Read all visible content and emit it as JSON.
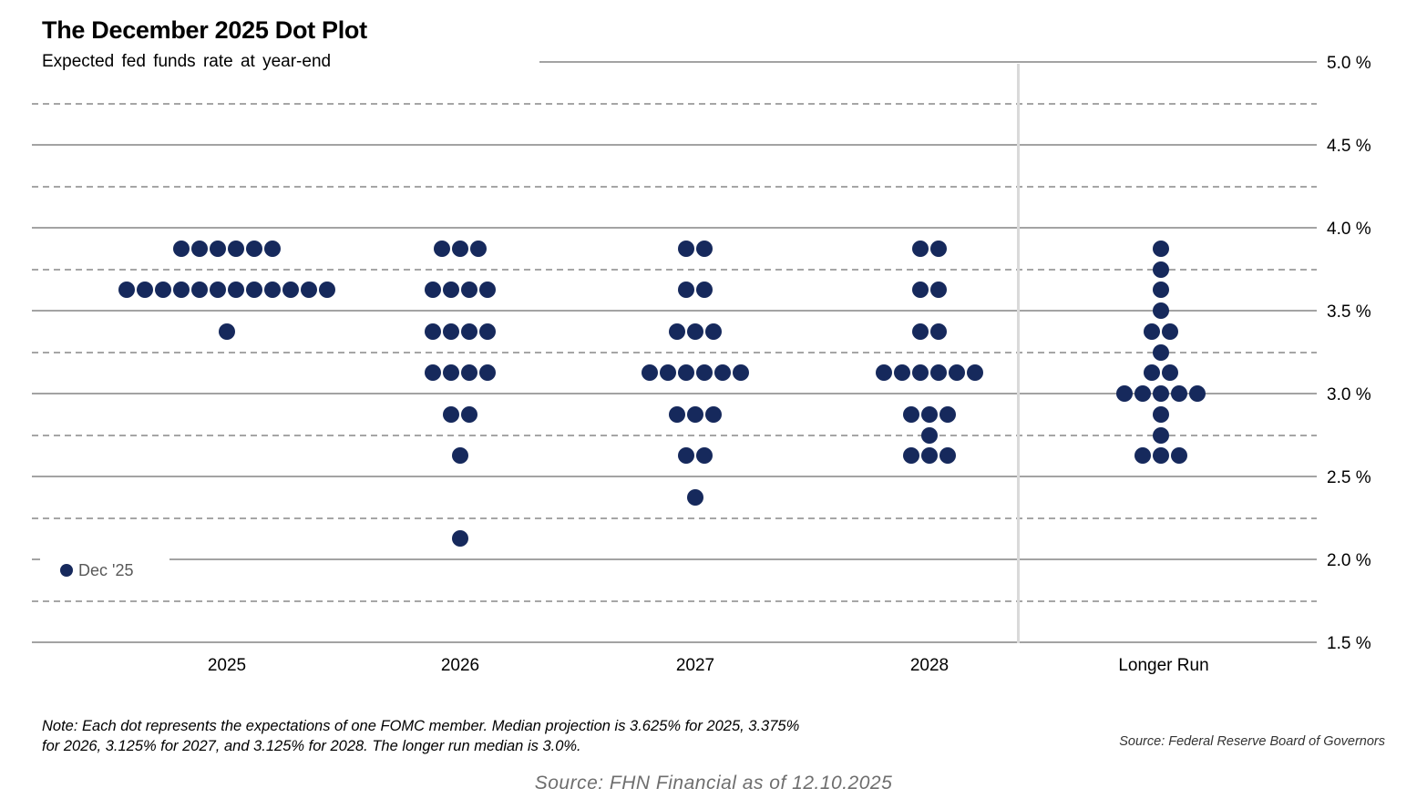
{
  "title": "The December 2025 Dot Plot",
  "subtitle": "Expected fed funds rate at year-end",
  "legend": {
    "label": "Dec '25"
  },
  "note": {
    "line1": "Note:  Each dot represents the expectations of one FOMC member. Median projection is 3.625% for 2025, 3.375%",
    "line2": "for 2026,  3.125% for 2027, and 3.125% for 2028. The longer run median is 3.0%."
  },
  "source_right": "Source: Federal Reserve Board of Governors",
  "source_bottom": "Source: FHN Financial as of 12.10.2025",
  "colors": {
    "dot": "#16295c",
    "gridline": "#a3a3a3",
    "divider": "#d9d9d9",
    "legend_text": "#595959",
    "source_bottom_text": "#6e6e6e"
  },
  "chart_data": {
    "type": "scatter",
    "subtype": "fomc-dot-plot",
    "title": "The December 2025 Dot Plot",
    "subtitle": "Expected fed funds rate at year-end",
    "series_name": "Dec '25",
    "categories": [
      "2025",
      "2026",
      "2027",
      "2028",
      "Longer Run"
    ],
    "ylim": [
      1.5,
      5.0
    ],
    "yticks": [
      {
        "value": 5.0,
        "label": "5.0 %"
      },
      {
        "value": 4.5,
        "label": "4.5 %"
      },
      {
        "value": 4.0,
        "label": "4.0 %"
      },
      {
        "value": 3.5,
        "label": "3.5 %"
      },
      {
        "value": 3.0,
        "label": "3.0 %"
      },
      {
        "value": 2.5,
        "label": "2.5 %"
      },
      {
        "value": 2.0,
        "label": "2.0 %"
      },
      {
        "value": 1.5,
        "label": "1.5 %"
      }
    ],
    "minor_gridlines": [
      4.75,
      4.25,
      3.75,
      3.25,
      2.75,
      2.25,
      1.75
    ],
    "grid": "major solid, minor dashed",
    "legend_position": "inside lower-left",
    "points": [
      {
        "category": "2025",
        "values": [
          {
            "rate": 3.875,
            "count": 6
          },
          {
            "rate": 3.625,
            "count": 12
          },
          {
            "rate": 3.375,
            "count": 1
          }
        ]
      },
      {
        "category": "2026",
        "values": [
          {
            "rate": 3.875,
            "count": 3
          },
          {
            "rate": 3.625,
            "count": 4
          },
          {
            "rate": 3.375,
            "count": 4
          },
          {
            "rate": 3.125,
            "count": 4
          },
          {
            "rate": 2.875,
            "count": 2
          },
          {
            "rate": 2.625,
            "count": 1
          },
          {
            "rate": 2.125,
            "count": 1
          }
        ]
      },
      {
        "category": "2027",
        "values": [
          {
            "rate": 3.875,
            "count": 2
          },
          {
            "rate": 3.625,
            "count": 2
          },
          {
            "rate": 3.375,
            "count": 3
          },
          {
            "rate": 3.125,
            "count": 6
          },
          {
            "rate": 2.875,
            "count": 3
          },
          {
            "rate": 2.625,
            "count": 2
          },
          {
            "rate": 2.375,
            "count": 1
          }
        ]
      },
      {
        "category": "2028",
        "values": [
          {
            "rate": 3.875,
            "count": 2
          },
          {
            "rate": 3.625,
            "count": 2
          },
          {
            "rate": 3.375,
            "count": 2
          },
          {
            "rate": 3.125,
            "count": 6
          },
          {
            "rate": 2.875,
            "count": 3
          },
          {
            "rate": 2.75,
            "count": 1
          },
          {
            "rate": 2.625,
            "count": 3
          }
        ]
      },
      {
        "category": "Longer Run",
        "values": [
          {
            "rate": 3.875,
            "count": 1
          },
          {
            "rate": 3.75,
            "count": 1
          },
          {
            "rate": 3.625,
            "count": 1
          },
          {
            "rate": 3.5,
            "count": 1
          },
          {
            "rate": 3.375,
            "count": 2
          },
          {
            "rate": 3.25,
            "count": 1
          },
          {
            "rate": 3.125,
            "count": 2
          },
          {
            "rate": 3.0,
            "count": 5
          },
          {
            "rate": 2.875,
            "count": 1
          },
          {
            "rate": 2.75,
            "count": 1
          },
          {
            "rate": 2.625,
            "count": 3
          }
        ]
      }
    ],
    "medians": {
      "2025": "3.625%",
      "2026": "3.375%",
      "2027": "3.125%",
      "2028": "3.125%",
      "longer_run": "3.0%"
    }
  }
}
